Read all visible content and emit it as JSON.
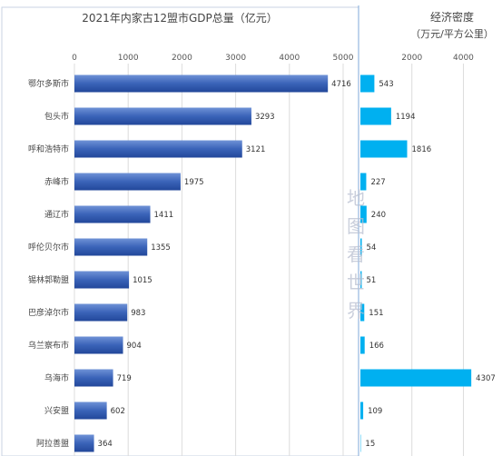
{
  "chart_data": [
    {
      "type": "bar",
      "orientation": "horizontal",
      "title": "2021年内家古12盟市GDP总量（亿元）",
      "categories": [
        "鄂尔多斯市",
        "包头市",
        "呼和浩特市",
        "赤峰市",
        "通辽市",
        "呼伦贝尔市",
        "锡林郭勒盟",
        "巴彦淖尔市",
        "乌兰察布市",
        "乌海市",
        "兴安盟",
        "阿拉善盟"
      ],
      "values": [
        4716,
        3293,
        3121,
        1975,
        1411,
        1355,
        1015,
        983,
        904,
        719,
        602,
        364
      ],
      "xlim": [
        0,
        5000
      ],
      "xticks": [
        0,
        1000,
        2000,
        3000,
        4000,
        5000
      ],
      "grid": true,
      "bar_color": "#3a63b8"
    },
    {
      "type": "bar",
      "orientation": "horizontal",
      "title": "经济密度",
      "subtitle": "（万元/平方公里）",
      "categories": [
        "鄂尔多斯市",
        "包头市",
        "呼和浩特市",
        "赤峰市",
        "通辽市",
        "呼伦贝尔市",
        "锡林郭勒盟",
        "巴彦淖尔市",
        "乌兰察布市",
        "乌海市",
        "兴安盟",
        "阿拉善盟"
      ],
      "values": [
        543,
        1194,
        1816,
        227,
        240,
        54,
        51,
        151,
        166,
        4307,
        109,
        15
      ],
      "xlim": [
        0,
        5500
      ],
      "xticks": [
        2000,
        4000
      ],
      "grid": true,
      "bar_color": "#00b0f0"
    }
  ],
  "watermark": "地图看世界"
}
